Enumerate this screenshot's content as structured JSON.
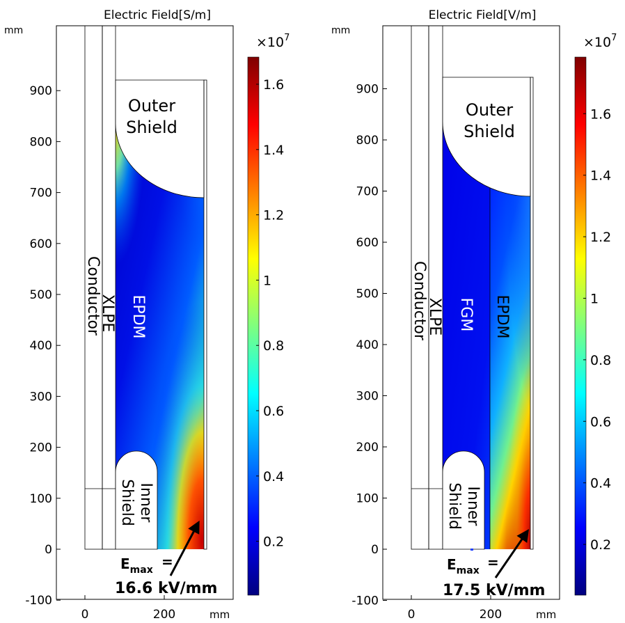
{
  "colormap": [
    "#00007f",
    "#0000ff",
    "#007fff",
    "#00ffff",
    "#7fff7f",
    "#ffff00",
    "#ff7f00",
    "#ff0000",
    "#7f0000"
  ],
  "plots": [
    {
      "title": "Electric Field[S/m]",
      "y_unit": "mm",
      "x_unit": "mm",
      "y_ticks": [
        "-100",
        "0",
        "100",
        "200",
        "300",
        "400",
        "500",
        "600",
        "700",
        "800",
        "900"
      ],
      "x_ticks": [
        "0",
        "200"
      ],
      "colorbar_exponent": "×10",
      "colorbar_exponent_power": "7",
      "colorbar_ticks": [
        "0.2",
        "0.4",
        "0.6",
        "0.8",
        "1",
        "1.2",
        "1.4",
        "1.6"
      ],
      "region_labels": {
        "outer_shield": [
          "Outer",
          "Shield"
        ],
        "conductor": "Conductor",
        "xlpe": "XLPE",
        "epdm": "EPDM",
        "inner_shield": [
          "Inner",
          "Shield"
        ]
      },
      "emax_label": "E",
      "emax_subscript": "max",
      "emax_eq": "=",
      "emax_value": "16.6 kV/mm"
    },
    {
      "title": "Electric Field[V/m]",
      "y_unit": "mm",
      "x_unit": "mm",
      "y_ticks": [
        "-100",
        "0",
        "100",
        "200",
        "300",
        "400",
        "500",
        "600",
        "700",
        "800",
        "900"
      ],
      "x_ticks": [
        "0",
        "200"
      ],
      "colorbar_exponent": "×10",
      "colorbar_exponent_power": "7",
      "colorbar_ticks": [
        "0.2",
        "0.4",
        "0.6",
        "0.8",
        "1",
        "1.2",
        "1.4",
        "1.6"
      ],
      "region_labels": {
        "outer_shield": [
          "Outer",
          "Shield"
        ],
        "conductor": "Conductor",
        "xlpe": "XLPE",
        "fgm": "FGM",
        "epdm": "EPDM",
        "inner_shield": [
          "Inner",
          "Shield"
        ]
      },
      "emax_label": "E",
      "emax_subscript": "max",
      "emax_eq": "=",
      "emax_value": "17.5 kV/mm"
    }
  ]
}
